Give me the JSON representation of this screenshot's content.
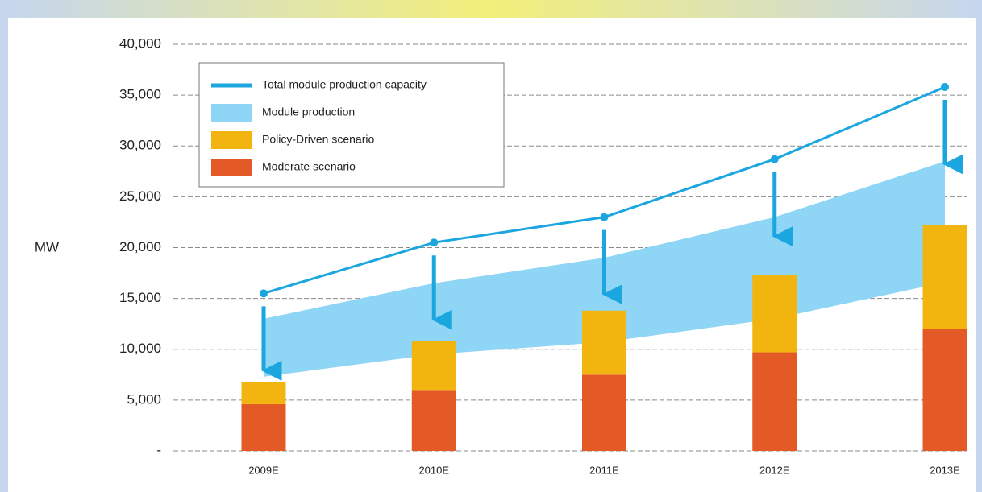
{
  "chart_data": {
    "type": "combo",
    "y_label": "MW",
    "categories": [
      "2009E",
      "2010E",
      "2011E",
      "2012E",
      "2013E"
    ],
    "ylim": [
      0,
      40000
    ],
    "yticks": [
      {
        "value": 0,
        "label": "-"
      },
      {
        "value": 5000,
        "label": "5,000"
      },
      {
        "value": 10000,
        "label": "10,000"
      },
      {
        "value": 15000,
        "label": "15,000"
      },
      {
        "value": 20000,
        "label": "20,000"
      },
      {
        "value": 25000,
        "label": "25,000"
      },
      {
        "value": 30000,
        "label": "30,000"
      },
      {
        "value": 35000,
        "label": "35,000"
      },
      {
        "value": 40000,
        "label": "40,000"
      }
    ],
    "grid": true,
    "legend": "upper left",
    "series": [
      {
        "name": "Total module production capacity",
        "type": "line",
        "color": "#1ba6e0",
        "values": [
          15500,
          20500,
          23000,
          28700,
          35800
        ]
      },
      {
        "name": "Module production",
        "type": "range",
        "color": "#8fd5f5",
        "low": [
          7300,
          9500,
          10700,
          13000,
          16600
        ],
        "high": [
          13000,
          16500,
          19000,
          23000,
          28500
        ]
      },
      {
        "name": "Policy-Driven scenario",
        "type": "bar",
        "color": "#f2b50f",
        "values": [
          2200,
          4800,
          6300,
          7600,
          10200
        ]
      },
      {
        "name": "Moderate scenario",
        "type": "bar",
        "color": "#e45a26",
        "values": [
          4600,
          6000,
          7500,
          9700,
          12000
        ]
      }
    ]
  }
}
